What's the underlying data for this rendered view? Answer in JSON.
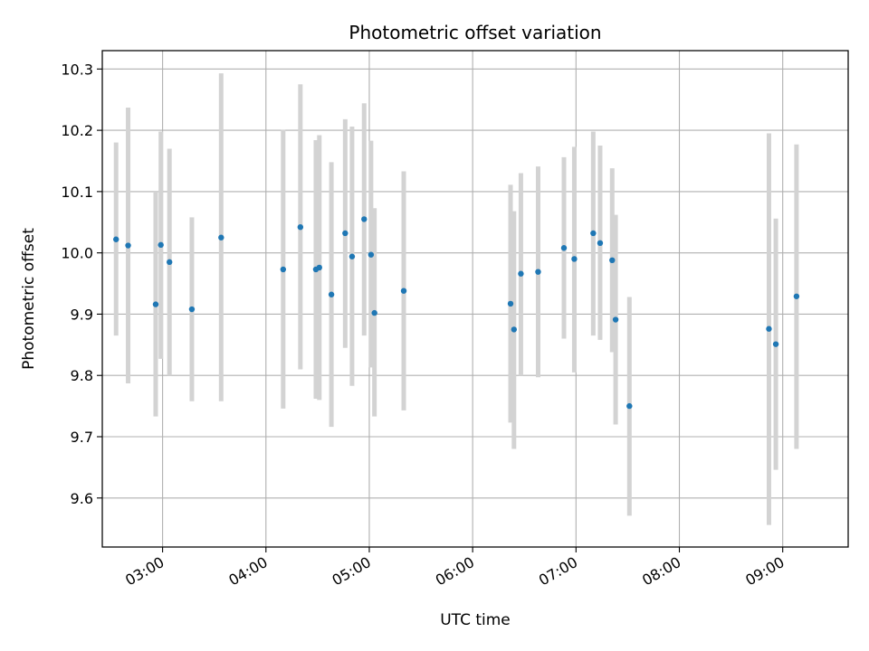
{
  "chart_data": {
    "type": "scatter",
    "title": "Photometric offset variation",
    "xlabel": "UTC time",
    "ylabel": "Photometric offset",
    "x_unit": "UTC time (hh:mm)",
    "xlim": [
      "02:25",
      "09:38"
    ],
    "ylim": [
      9.52,
      10.33
    ],
    "x_ticks": [
      "03:00",
      "04:00",
      "05:00",
      "06:00",
      "07:00",
      "08:00",
      "09:00"
    ],
    "y_ticks": [
      9.6,
      9.7,
      9.8,
      9.9,
      10.0,
      10.1,
      10.2,
      10.3
    ],
    "y_tick_labels": [
      "9.6",
      "9.7",
      "9.8",
      "9.9",
      "10.0",
      "10.1",
      "10.2",
      "10.3"
    ],
    "grid": true,
    "x_tick_rotation_deg": 30,
    "colors": {
      "point": "#1f77b4",
      "error_bar": "#d3d3d3",
      "grid": "#b0b0b0",
      "axes": "#000000"
    },
    "points": [
      {
        "x": "02:33",
        "y": 10.022,
        "y_low": 9.865,
        "y_high": 10.18
      },
      {
        "x": "02:40",
        "y": 10.012,
        "y_low": 9.787,
        "y_high": 10.237
      },
      {
        "x": "02:56",
        "y": 9.916,
        "y_low": 9.733,
        "y_high": 10.1
      },
      {
        "x": "02:59",
        "y": 10.013,
        "y_low": 9.827,
        "y_high": 10.198
      },
      {
        "x": "03:04",
        "y": 9.985,
        "y_low": 9.8,
        "y_high": 10.17
      },
      {
        "x": "03:17",
        "y": 9.908,
        "y_low": 9.758,
        "y_high": 10.058
      },
      {
        "x": "03:34",
        "y": 10.025,
        "y_low": 9.758,
        "y_high": 10.293
      },
      {
        "x": "04:10",
        "y": 9.973,
        "y_low": 9.746,
        "y_high": 10.201
      },
      {
        "x": "04:20",
        "y": 10.042,
        "y_low": 9.81,
        "y_high": 10.275
      },
      {
        "x": "04:29",
        "y": 9.973,
        "y_low": 9.762,
        "y_high": 10.184
      },
      {
        "x": "04:31",
        "y": 9.976,
        "y_low": 9.76,
        "y_high": 10.192
      },
      {
        "x": "04:38",
        "y": 9.932,
        "y_low": 9.716,
        "y_high": 10.148
      },
      {
        "x": "04:46",
        "y": 10.032,
        "y_low": 9.845,
        "y_high": 10.218
      },
      {
        "x": "04:50",
        "y": 9.994,
        "y_low": 9.783,
        "y_high": 10.206
      },
      {
        "x": "04:57",
        "y": 10.055,
        "y_low": 9.865,
        "y_high": 10.244
      },
      {
        "x": "05:01",
        "y": 9.997,
        "y_low": 9.813,
        "y_high": 10.183
      },
      {
        "x": "05:03",
        "y": 9.902,
        "y_low": 9.733,
        "y_high": 10.073
      },
      {
        "x": "05:20",
        "y": 9.938,
        "y_low": 9.743,
        "y_high": 10.133
      },
      {
        "x": "06:22",
        "y": 9.917,
        "y_low": 9.723,
        "y_high": 10.111
      },
      {
        "x": "06:24",
        "y": 9.875,
        "y_low": 9.68,
        "y_high": 10.068
      },
      {
        "x": "06:28",
        "y": 9.966,
        "y_low": 9.8,
        "y_high": 10.13
      },
      {
        "x": "06:38",
        "y": 9.969,
        "y_low": 9.797,
        "y_high": 10.141
      },
      {
        "x": "06:53",
        "y": 10.008,
        "y_low": 9.86,
        "y_high": 10.156
      },
      {
        "x": "06:59",
        "y": 9.99,
        "y_low": 9.805,
        "y_high": 10.173
      },
      {
        "x": "07:10",
        "y": 10.032,
        "y_low": 9.865,
        "y_high": 10.198
      },
      {
        "x": "07:14",
        "y": 10.016,
        "y_low": 9.858,
        "y_high": 10.175
      },
      {
        "x": "07:21",
        "y": 9.988,
        "y_low": 9.838,
        "y_high": 10.138
      },
      {
        "x": "07:23",
        "y": 9.891,
        "y_low": 9.72,
        "y_high": 10.062
      },
      {
        "x": "07:31",
        "y": 9.75,
        "y_low": 9.571,
        "y_high": 9.928
      },
      {
        "x": "08:52",
        "y": 9.876,
        "y_low": 9.556,
        "y_high": 10.195
      },
      {
        "x": "08:56",
        "y": 9.851,
        "y_low": 9.646,
        "y_high": 10.056
      },
      {
        "x": "09:08",
        "y": 9.929,
        "y_low": 9.68,
        "y_high": 10.177
      }
    ]
  }
}
